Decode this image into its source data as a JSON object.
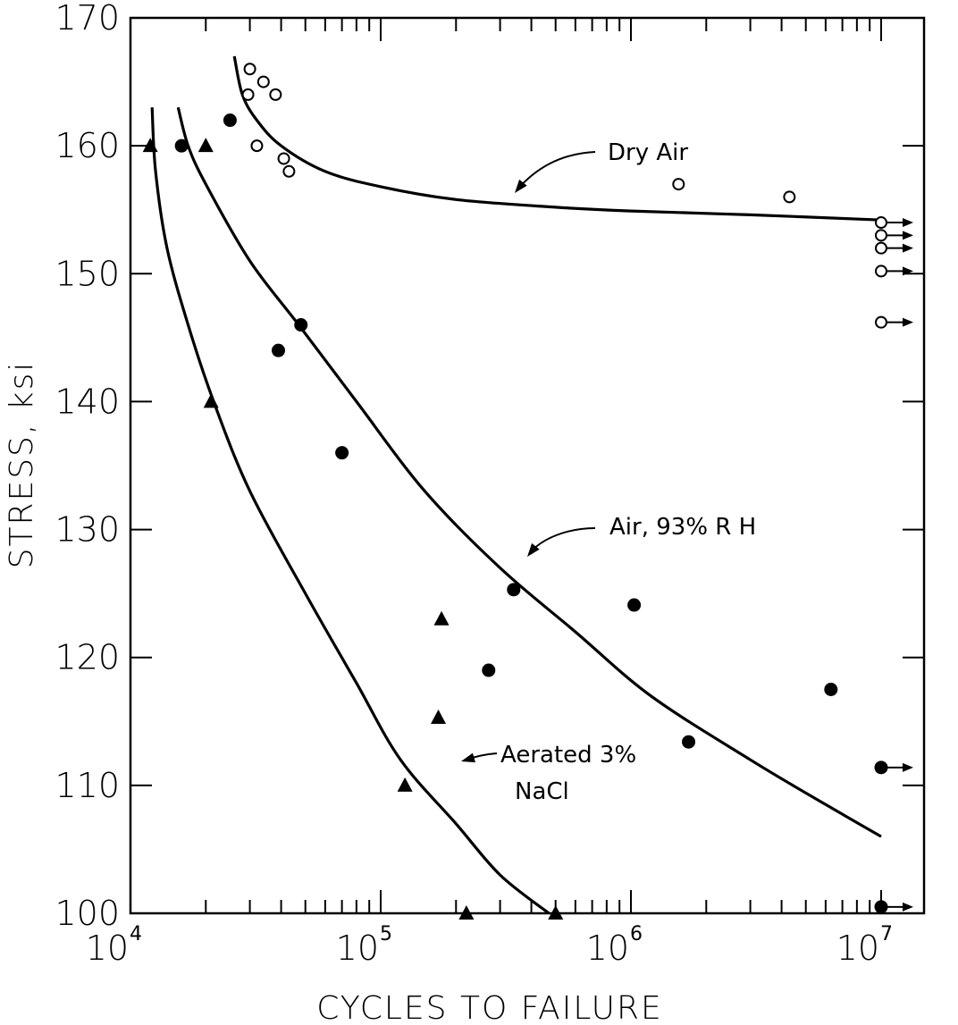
{
  "chart_data": {
    "type": "scatter",
    "xscale": "log",
    "xlabel": "CYCLES TO FAILURE",
    "ylabel": "STRESS, ksi",
    "xlim": [
      10000,
      10000000
    ],
    "ylim": [
      100,
      170
    ],
    "x_tick_labels": [
      {
        "base": "10",
        "exp": "4"
      },
      {
        "base": "10",
        "exp": "5"
      },
      {
        "base": "10",
        "exp": "6"
      },
      {
        "base": "10",
        "exp": "7"
      }
    ],
    "y_tick_labels": [
      "100",
      "110",
      "120",
      "130",
      "140",
      "150",
      "160",
      "170"
    ],
    "y_ticks": [
      100,
      110,
      120,
      130,
      140,
      150,
      160,
      170
    ],
    "series": [
      {
        "name": "Dry Air",
        "marker": "open-circle",
        "points": [
          [
            30000,
            166
          ],
          [
            29500,
            164
          ],
          [
            34000,
            165
          ],
          [
            38000,
            164
          ],
          [
            32000,
            160
          ],
          [
            41000,
            159
          ],
          [
            43000,
            158
          ],
          [
            1550000,
            157
          ],
          [
            4300000,
            156
          ]
        ],
        "runouts": [
          [
            10000000,
            154
          ],
          [
            10000000,
            153
          ],
          [
            10000000,
            152
          ],
          [
            10000000,
            150.2
          ],
          [
            10000000,
            146.2
          ]
        ],
        "curve": [
          [
            26000,
            167
          ],
          [
            28000,
            164
          ],
          [
            32000,
            162
          ],
          [
            40000,
            160
          ],
          [
            60000,
            158
          ],
          [
            100000,
            156.8
          ],
          [
            200000,
            155.8
          ],
          [
            500000,
            155.2
          ],
          [
            1000000,
            154.9
          ],
          [
            3000000,
            154.6
          ],
          [
            10000000,
            154.2
          ]
        ]
      },
      {
        "name": "Air, 93% R H",
        "marker": "filled-circle",
        "points": [
          [
            16000,
            160
          ],
          [
            25000,
            162
          ],
          [
            39000,
            144
          ],
          [
            48000,
            146
          ],
          [
            70000,
            136
          ],
          [
            270000,
            119
          ],
          [
            340000,
            125.3
          ],
          [
            1030000,
            124.1
          ],
          [
            1700000,
            113.4
          ],
          [
            6300000,
            117.5
          ]
        ],
        "runouts": [
          [
            10000000,
            111.4
          ],
          [
            10000000,
            100.5
          ]
        ],
        "curve": [
          [
            15500,
            163
          ],
          [
            17000,
            160
          ],
          [
            20000,
            157
          ],
          [
            30000,
            151
          ],
          [
            47000,
            146
          ],
          [
            80000,
            140
          ],
          [
            150000,
            133
          ],
          [
            300000,
            127
          ],
          [
            600000,
            122
          ],
          [
            1200000,
            117
          ],
          [
            3000000,
            112
          ],
          [
            6000000,
            108.5
          ],
          [
            10000000,
            106
          ]
        ]
      },
      {
        "name": "Aerated 3% NaCl",
        "marker": "filled-triangle",
        "points": [
          [
            12000,
            160
          ],
          [
            20000,
            160
          ],
          [
            21000,
            140
          ],
          [
            125000,
            110
          ],
          [
            175000,
            123
          ],
          [
            170000,
            115.3
          ],
          [
            220000,
            100
          ],
          [
            500000,
            100
          ]
        ],
        "runouts": [],
        "curve": [
          [
            12200,
            163
          ],
          [
            12600,
            158
          ],
          [
            14000,
            152
          ],
          [
            17000,
            146
          ],
          [
            21500,
            140
          ],
          [
            30000,
            133
          ],
          [
            50000,
            125
          ],
          [
            80000,
            118
          ],
          [
            120000,
            112
          ],
          [
            200000,
            107
          ],
          [
            300000,
            103
          ],
          [
            470000,
            100
          ]
        ]
      }
    ],
    "annotations": [
      {
        "text": "Dry Air",
        "target": "Dry Air curve"
      },
      {
        "text": "Air, 93% R H",
        "target": "Air, 93% R H curve"
      },
      {
        "text_lines": [
          "Aerated 3%",
          "NaCl"
        ],
        "target": "Aerated 3% NaCl curve"
      }
    ]
  }
}
